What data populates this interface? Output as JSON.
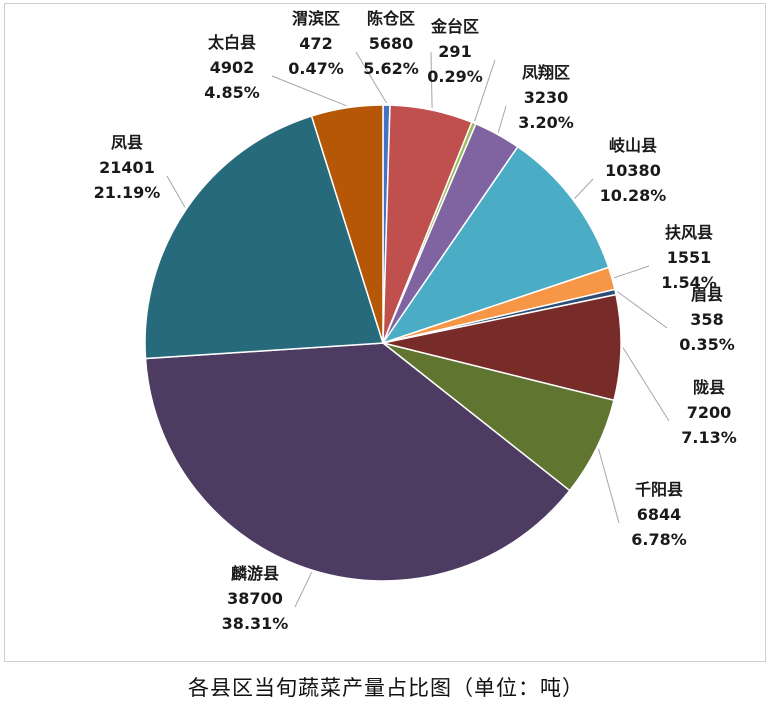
{
  "caption": "各县区当旬蔬菜产量占比图（单位：吨）",
  "chart_data": {
    "type": "pie",
    "title": "",
    "slices": [
      {
        "name": "渭滨区",
        "value": 472,
        "percent": "0.47%",
        "color": "#4472C4"
      },
      {
        "name": "陈仓区",
        "value": 5680,
        "percent": "5.62%",
        "color": "#C0504D"
      },
      {
        "name": "金台区",
        "value": 291,
        "percent": "0.29%",
        "color": "#9BBB59"
      },
      {
        "name": "凤翔区",
        "value": 3230,
        "percent": "3.20%",
        "color": "#8064A2"
      },
      {
        "name": "岐山县",
        "value": 10380,
        "percent": "10.28%",
        "color": "#4BACC6"
      },
      {
        "name": "扶风县",
        "value": 1551,
        "percent": "1.54%",
        "color": "#F79646"
      },
      {
        "name": "眉县",
        "value": 358,
        "percent": "0.35%",
        "color": "#2C4D75"
      },
      {
        "name": "陇县",
        "value": 7200,
        "percent": "7.13%",
        "color": "#772C2A"
      },
      {
        "name": "千阳县",
        "value": 6844,
        "percent": "6.78%",
        "color": "#5F7530"
      },
      {
        "name": "麟游县",
        "value": 38700,
        "percent": "38.31%",
        "color": "#4D3B62"
      },
      {
        "name": "凤县",
        "value": 21401,
        "percent": "21.19%",
        "color": "#276A7C"
      },
      {
        "name": "太白县",
        "value": 4902,
        "percent": "4.85%",
        "color": "#B65708"
      }
    ],
    "legend": "none",
    "start": "12 o'clock, clockwise"
  }
}
